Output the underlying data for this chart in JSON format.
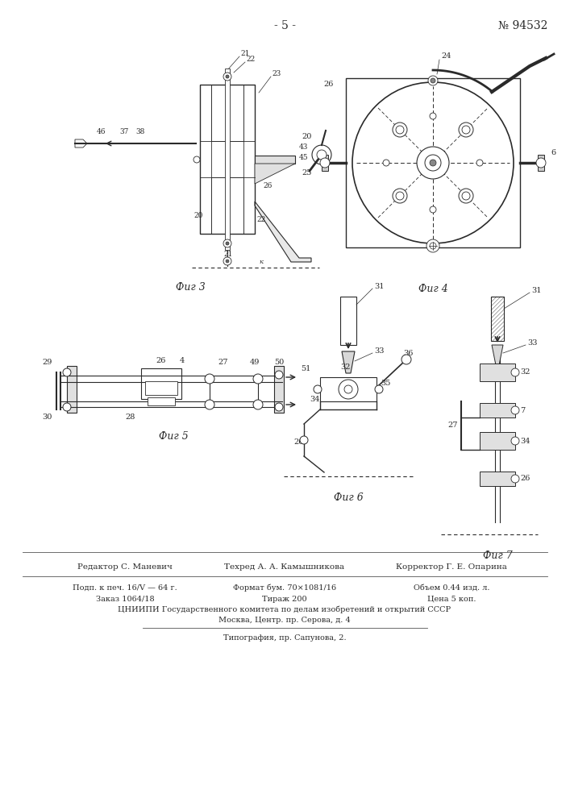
{
  "page_number": "- 5 -",
  "patent_number": "№ 94532",
  "background_color": "#ffffff",
  "text_color": "#2a2a2a",
  "fig3_label": "Фиг 3",
  "fig4_label": "Фиг 4",
  "fig5_label": "Фиг 5",
  "fig6_label": "Фиг 6",
  "fig7_label": "Фиг 7",
  "footer_line1_left": "Подп. к печ. 16/V — 64 г.",
  "footer_line1_mid": "Формат бум. 70×1081/16",
  "footer_line1_right": "Объем 0.44 изд. л.",
  "footer_line2_left": "Заказ 1064/18",
  "footer_line2_mid": "Тираж 200",
  "footer_line2_right": "Цена 5 коп.",
  "footer_line3": "ЦНИИПИ Государственного комитета по делам изобретений и открытий СССР",
  "footer_line4": "Москва, Центр. пр. Серова, д. 4",
  "footer_sep_line": true,
  "footer_line5": "Типография, пр. Сапунова, 2.",
  "editor_label": "Редактор С. Маневич",
  "techred_label": "Техред А. А. Камышникова",
  "corrector_label": "Корректор Г. Е. Опарина"
}
